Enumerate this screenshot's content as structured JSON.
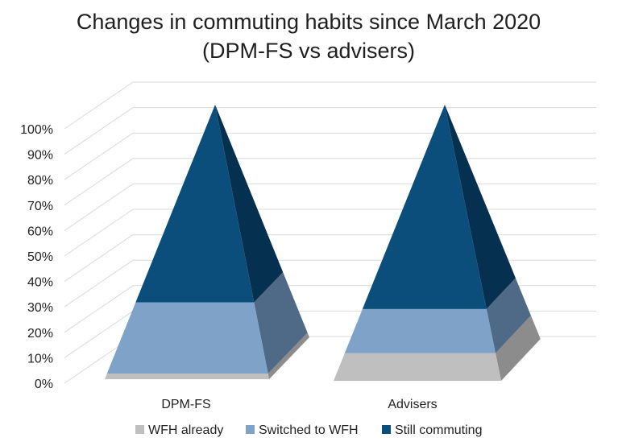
{
  "chart_data": {
    "type": "3d-pyramid-stacked-100",
    "title": [
      "Changes in commuting habits since March 2020",
      "(DPM-FS vs advisers)"
    ],
    "categories": [
      "DPM-FS",
      "Advisers"
    ],
    "y_ticks": [
      "0%",
      "10%",
      "20%",
      "30%",
      "40%",
      "50%",
      "60%",
      "70%",
      "80%",
      "90%",
      "100%"
    ],
    "ylim": [
      0,
      100
    ],
    "grid": true,
    "legend_position": "bottom",
    "series": [
      {
        "name": "WFH already",
        "values": [
          2,
          10
        ],
        "color": "#bfbfbf",
        "side_color": "#8c8c8c"
      },
      {
        "name": "Switched to WFH",
        "values": [
          26,
          16
        ],
        "color": "#7fa3c8",
        "side_color": "#4e6a86"
      },
      {
        "name": "Still commuting",
        "values": [
          72,
          74
        ],
        "color": "#0b4d7b",
        "side_color": "#06304f"
      }
    ]
  }
}
